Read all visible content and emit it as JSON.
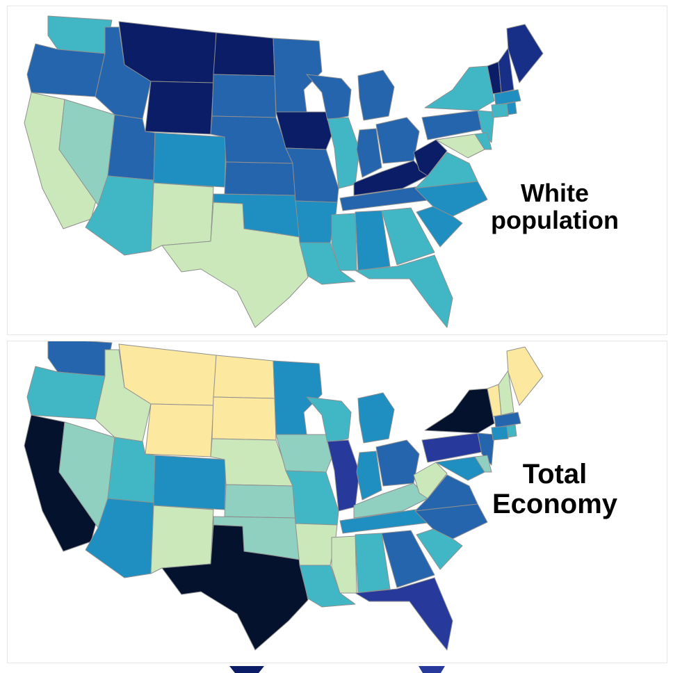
{
  "maps": [
    {
      "title_lines": [
        "White",
        "population"
      ],
      "palette": {
        "c1": "#cbe8bb",
        "c2": "#8fd0c0",
        "c3": "#41b6c4",
        "c4": "#1f8ec0",
        "c5": "#2565ad",
        "c6": "#172f86",
        "c7": "#0a1d66"
      },
      "states": {
        "WA": "c3",
        "OR": "c5",
        "CA": "c1",
        "ID": "c5",
        "NV": "c2",
        "MT": "c7",
        "WY": "c7",
        "UT": "c5",
        "AZ": "c3",
        "CO": "c4",
        "NM": "c1",
        "ND": "c7",
        "SD": "c5",
        "NE": "c5",
        "KS": "c5",
        "OK": "c4",
        "TX": "c1",
        "MN": "c5",
        "IA": "c7",
        "MO": "c5",
        "AR": "c4",
        "LA": "c3",
        "WI": "c5",
        "IL": "c3",
        "MI": "c5",
        "IN": "c5",
        "OH": "c5",
        "KY": "c7",
        "TN": "c5",
        "MS": "c3",
        "AL": "c4",
        "GA": "c3",
        "FL": "c3",
        "WV": "c7",
        "VA": "c3",
        "NC": "c4",
        "SC": "c4",
        "PA": "c5",
        "NY": "c3",
        "NJ": "c3",
        "MD": "c1",
        "DE": "c3",
        "VT": "c7",
        "NH": "c6",
        "ME": "c6",
        "MA": "c4",
        "CT": "c3",
        "RI": "c4"
      }
    },
    {
      "title_lines": [
        "Total",
        "Economy"
      ],
      "palette": {
        "c0": "#fde8a0",
        "c1": "#cbe8bb",
        "c2": "#8fd0c0",
        "c3": "#41b6c4",
        "c4": "#1f8ec0",
        "c5": "#2565ad",
        "c6": "#27399a",
        "c7": "#0a1d66",
        "c8": "#04122e"
      },
      "states": {
        "WA": "c5",
        "OR": "c3",
        "CA": "c8",
        "ID": "c1",
        "NV": "c2",
        "MT": "c0",
        "WY": "c0",
        "UT": "c3",
        "AZ": "c4",
        "CO": "c4",
        "NM": "c1",
        "ND": "c0",
        "SD": "c0",
        "NE": "c1",
        "KS": "c2",
        "OK": "c2",
        "TX": "c8",
        "MN": "c4",
        "IA": "c2",
        "MO": "c3",
        "AR": "c1",
        "LA": "c3",
        "WI": "c3",
        "IL": "c6",
        "MI": "c4",
        "IN": "c4",
        "OH": "c5",
        "KY": "c2",
        "TN": "c4",
        "MS": "c1",
        "AL": "c3",
        "GA": "c5",
        "FL": "c6",
        "WV": "c1",
        "VA": "c5",
        "NC": "c5",
        "SC": "c3",
        "PA": "c6",
        "NY": "c8",
        "NJ": "c5",
        "MD": "c4",
        "DE": "c2",
        "VT": "c0",
        "NH": "c1",
        "ME": "c0",
        "MA": "c5",
        "CT": "c4",
        "RI": "c3"
      }
    }
  ],
  "bottom_strip_colors": [
    "#0a1d66",
    "#27399a"
  ]
}
